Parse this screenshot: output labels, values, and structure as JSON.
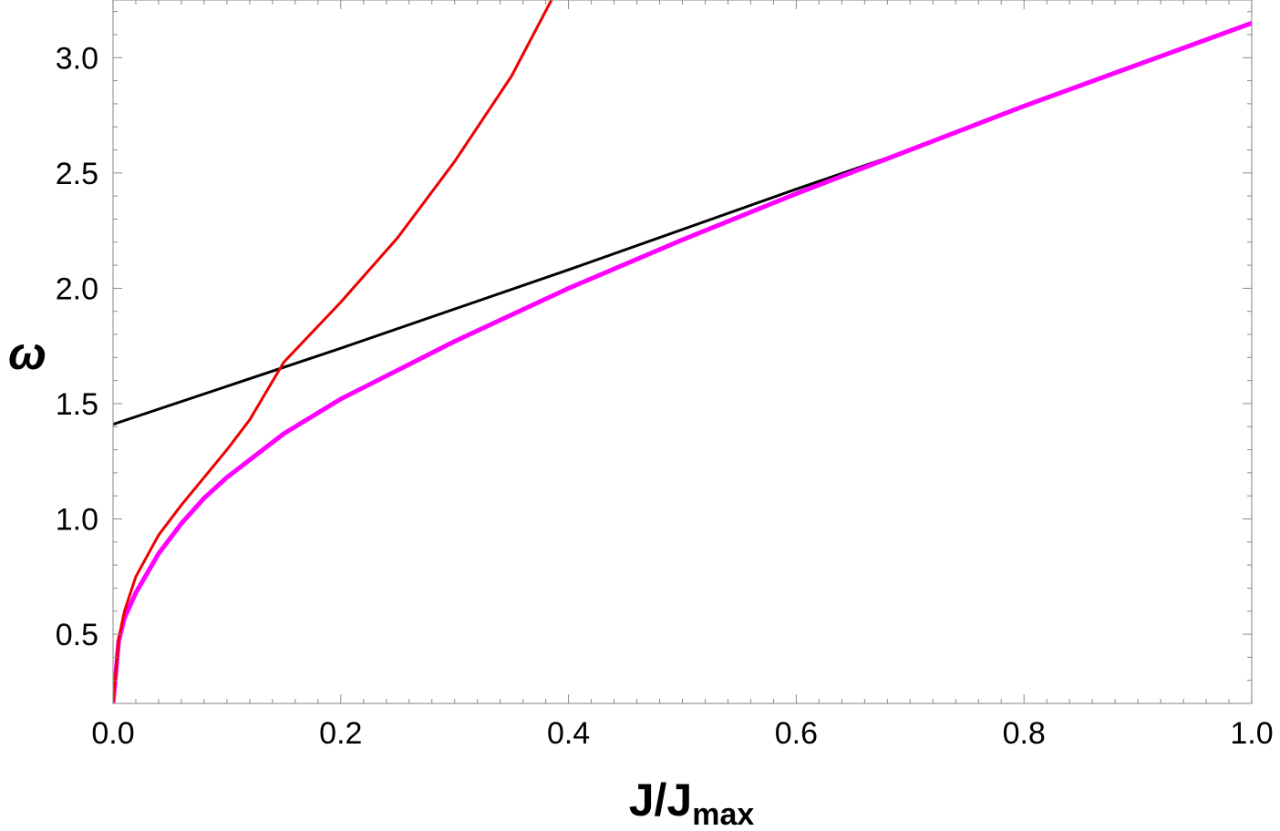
{
  "chart_data": {
    "type": "line",
    "xlabel": "J/J",
    "xlabel_sub": "max",
    "ylabel": "ω",
    "xlim": [
      0,
      1
    ],
    "ylim": [
      0.2,
      3.25
    ],
    "x_ticks": [
      0.0,
      0.2,
      0.4,
      0.6,
      0.8,
      1.0
    ],
    "x_tick_labels": [
      "0.0",
      "0.2",
      "0.4",
      "0.6",
      "0.8",
      "1.0"
    ],
    "y_ticks": [
      0.5,
      1.0,
      1.5,
      2.0,
      2.5,
      3.0
    ],
    "y_tick_labels": [
      "0.5",
      "1.0",
      "1.5",
      "2.0",
      "2.5",
      "3.0"
    ],
    "grid": false,
    "series": [
      {
        "color": "#000000",
        "width": 3,
        "x": [
          0.0,
          0.2,
          0.4,
          0.6,
          0.7,
          0.8,
          1.0
        ],
        "y": [
          1.41,
          1.74,
          2.08,
          2.43,
          2.6,
          2.79,
          3.15
        ]
      },
      {
        "color": "#ff00ff",
        "width": 5,
        "x": [
          0.0,
          0.005,
          0.01,
          0.02,
          0.04,
          0.06,
          0.08,
          0.1,
          0.15,
          0.2,
          0.3,
          0.4,
          0.5,
          0.6,
          0.7,
          0.8,
          0.9,
          1.0
        ],
        "y": [
          0.2,
          0.47,
          0.57,
          0.68,
          0.85,
          0.98,
          1.09,
          1.18,
          1.37,
          1.52,
          1.77,
          2.0,
          2.21,
          2.41,
          2.6,
          2.79,
          2.97,
          3.15
        ]
      },
      {
        "color": "#ee0000",
        "width": 3,
        "x": [
          0.0,
          0.005,
          0.01,
          0.02,
          0.04,
          0.06,
          0.08,
          0.1,
          0.12,
          0.15,
          0.2,
          0.25,
          0.3,
          0.35,
          0.385
        ],
        "y": [
          0.2,
          0.48,
          0.6,
          0.75,
          0.93,
          1.06,
          1.18,
          1.3,
          1.43,
          1.68,
          1.94,
          2.22,
          2.55,
          2.92,
          3.25
        ]
      }
    ]
  }
}
